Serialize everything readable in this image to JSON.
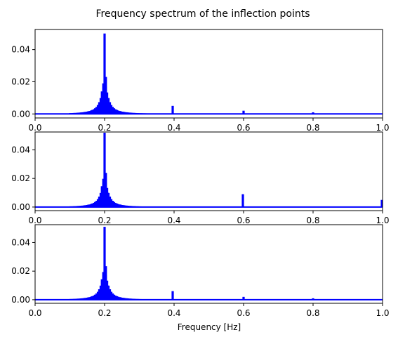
{
  "figure": {
    "suptitle": "Frequency spectrum of the inflection points",
    "series_color": "#0000ff"
  },
  "chart_data": [
    {
      "type": "bar",
      "title": "",
      "xlabel": "",
      "ylabel": "",
      "xlim": [
        0.0,
        1.0
      ],
      "ylim": [
        -0.0025,
        0.0525
      ],
      "xticks": [
        "0.0",
        "0.2",
        "0.4",
        "0.6",
        "0.8",
        "1.0"
      ],
      "yticks": [
        "0.00",
        "0.02",
        "0.04"
      ],
      "grid": false,
      "peaks": [
        {
          "x": 0.2,
          "value": 0.05
        },
        {
          "x": 0.396,
          "value": 0.005
        },
        {
          "x": 0.6,
          "value": 0.002
        },
        {
          "x": 0.8,
          "value": 0.001
        }
      ]
    },
    {
      "type": "bar",
      "title": "",
      "xlabel": "",
      "ylabel": "",
      "xlim": [
        0.0,
        1.0
      ],
      "ylim": [
        -0.0025,
        0.0525
      ],
      "xticks": [
        "0.0",
        "0.2",
        "0.4",
        "0.6",
        "0.8",
        "1.0"
      ],
      "yticks": [
        "0.00",
        "0.02",
        "0.04"
      ],
      "grid": false,
      "peaks": [
        {
          "x": 0.2,
          "value": 0.052
        },
        {
          "x": 0.598,
          "value": 0.009
        },
        {
          "x": 0.998,
          "value": 0.005
        }
      ]
    },
    {
      "type": "bar",
      "title": "",
      "xlabel": "Frequency [Hz]",
      "ylabel": "",
      "xlim": [
        0.0,
        1.0
      ],
      "ylim": [
        -0.0025,
        0.0525
      ],
      "xticks": [
        "0.0",
        "0.2",
        "0.4",
        "0.6",
        "0.8",
        "1.0"
      ],
      "yticks": [
        "0.00",
        "0.02",
        "0.04"
      ],
      "grid": false,
      "peaks": [
        {
          "x": 0.2,
          "value": 0.051
        },
        {
          "x": 0.396,
          "value": 0.006
        },
        {
          "x": 0.6,
          "value": 0.002
        },
        {
          "x": 0.8,
          "value": 0.001
        }
      ]
    }
  ]
}
